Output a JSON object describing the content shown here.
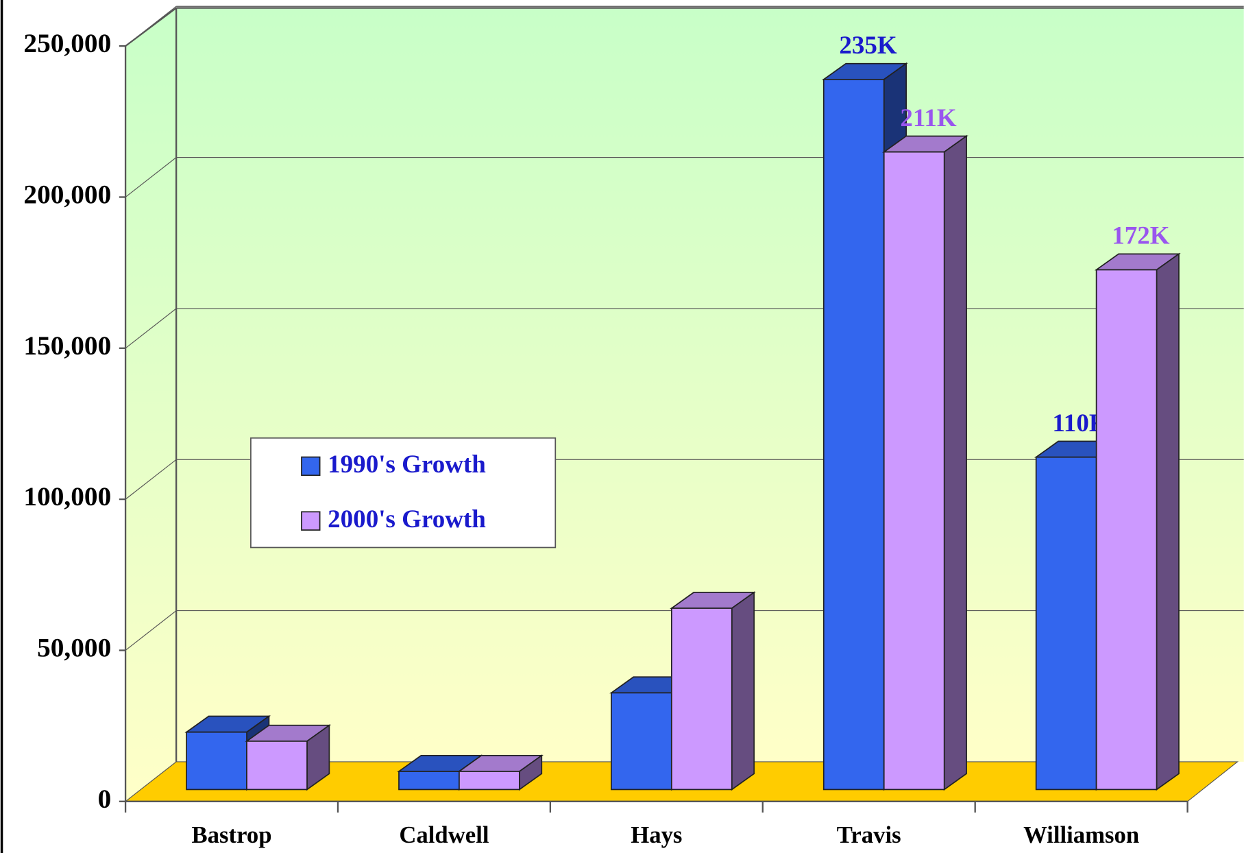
{
  "chart_data": {
    "type": "bar3d",
    "categories": [
      "Bastrop",
      "Caldwell",
      "Hays",
      "Travis",
      "Williamson"
    ],
    "series": [
      {
        "name": "1990's Growth",
        "color": "#3366ee",
        "label_color": "#1a1acc",
        "values": [
          19000,
          6000,
          32000,
          235000,
          110000
        ],
        "value_labels": [
          null,
          null,
          null,
          "235K",
          "110K"
        ]
      },
      {
        "name": "2000's Growth",
        "color": "#cc99ff",
        "label_color": "#9955ee",
        "values": [
          16000,
          6000,
          60000,
          211000,
          172000
        ],
        "value_labels": [
          null,
          null,
          null,
          "211K",
          "172K"
        ]
      }
    ],
    "ylim": [
      0,
      250000
    ],
    "yticks": [
      0,
      {
        "value": 50000,
        "label": "50,000"
      },
      {
        "value": 100000,
        "label": "100,000"
      },
      {
        "value": 150000,
        "label": "150,000"
      },
      {
        "value": 200000,
        "label": "200,000"
      },
      {
        "value": 250000,
        "label": "250,000"
      }
    ],
    "grid": true,
    "legend": "center left"
  }
}
